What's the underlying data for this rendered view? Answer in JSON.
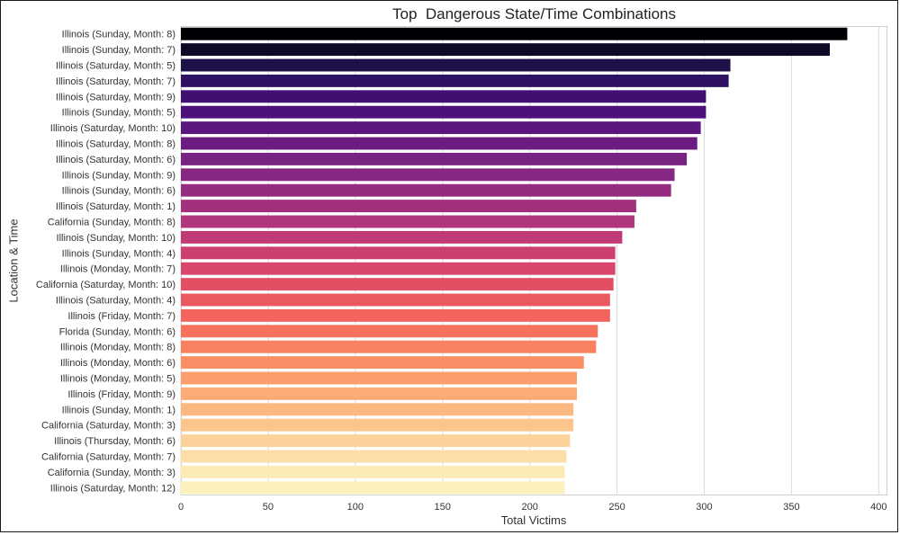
{
  "chart_data": {
    "type": "bar",
    "orientation": "horizontal",
    "title": "Top  Dangerous State/Time Combinations",
    "xlabel": "Total Victims",
    "ylabel": "Location & Time",
    "xlim": [
      0,
      405
    ],
    "xticks": [
      0,
      50,
      100,
      150,
      200,
      250,
      300,
      350,
      400
    ],
    "grid": "vertical",
    "palette": "magma",
    "categories": [
      "Illinois (Sunday, Month: 8)",
      "Illinois (Sunday, Month: 7)",
      "Illinois (Saturday, Month: 5)",
      "Illinois (Saturday, Month: 7)",
      "Illinois (Saturday, Month: 9)",
      "Illinois (Sunday, Month: 5)",
      "Illinois (Saturday, Month: 10)",
      "Illinois (Saturday, Month: 8)",
      "Illinois (Saturday, Month: 6)",
      "Illinois (Sunday, Month: 9)",
      "Illinois (Sunday, Month: 6)",
      "Illinois (Saturday, Month: 1)",
      "California (Sunday, Month: 8)",
      "Illinois (Sunday, Month: 10)",
      "Illinois (Sunday, Month: 4)",
      "Illinois (Monday, Month: 7)",
      "California (Saturday, Month: 10)",
      "Illinois (Saturday, Month: 4)",
      "Illinois (Friday, Month: 7)",
      "Florida (Sunday, Month: 6)",
      "Illinois (Monday, Month: 8)",
      "Illinois (Monday, Month: 6)",
      "Illinois (Monday, Month: 5)",
      "Illinois (Friday, Month: 9)",
      "Illinois (Sunday, Month: 1)",
      "California (Saturday, Month: 3)",
      "Illinois (Thursday, Month: 6)",
      "California (Saturday, Month: 7)",
      "California (Sunday, Month: 3)",
      "Illinois (Saturday, Month: 12)"
    ],
    "values": [
      382,
      372,
      315,
      314,
      301,
      301,
      298,
      296,
      290,
      283,
      281,
      261,
      260,
      253,
      249,
      249,
      248,
      246,
      246,
      239,
      238,
      231,
      227,
      227,
      225,
      225,
      223,
      221,
      220,
      220
    ],
    "colors": [
      "#000004",
      "#0b0924",
      "#1d1147",
      "#2f1163",
      "#3f0f72",
      "#4e117b",
      "#5c167f",
      "#6a1c81",
      "#782281",
      "#862781",
      "#942c80",
      "#a3307e",
      "#b1357b",
      "#bf3a77",
      "#cc3f71",
      "#d9466b",
      "#e34e65",
      "#ec5860",
      "#f2645d",
      "#f6725c",
      "#f8815f",
      "#fa8f65",
      "#fb9d6d",
      "#fcab76",
      "#fcb881",
      "#fcc58d",
      "#fcd29a",
      "#fcdea8",
      "#fcebb6",
      "#fcf0bd"
    ]
  }
}
